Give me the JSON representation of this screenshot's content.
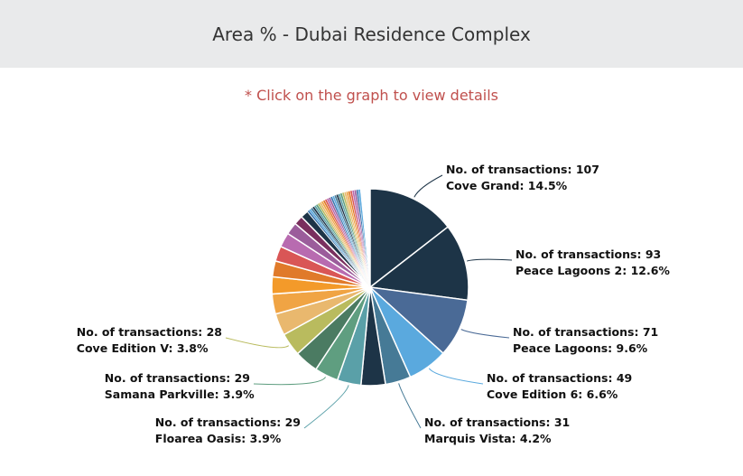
{
  "header": {
    "title": "Area % - Dubai Residence Complex"
  },
  "hint": "* Click on the graph to view details",
  "chart_data": {
    "type": "pie",
    "title": "Area % - Dubai Residence Complex",
    "slices": [
      {
        "name": "Cove Grand",
        "value": 14.5,
        "transactions": 107,
        "color": "#1d3447",
        "label": true
      },
      {
        "name": "Peace Lagoons 2",
        "value": 12.6,
        "transactions": 93,
        "color": "#1d3447",
        "label": true
      },
      {
        "name": "Peace Lagoons",
        "value": 9.6,
        "transactions": 71,
        "color": "#4a6a96",
        "label": true
      },
      {
        "name": "Cove Edition 6",
        "value": 6.6,
        "transactions": 49,
        "color": "#5aa9de",
        "label": true
      },
      {
        "name": "Marquis Vista",
        "value": 4.2,
        "transactions": 31,
        "color": "#467a96",
        "label": true
      },
      {
        "name": "",
        "value": 4.0,
        "color": "#1d3447"
      },
      {
        "name": "Floarea Oasis",
        "value": 3.9,
        "transactions": 29,
        "color": "#5aa0a8",
        "label": true
      },
      {
        "name": "Samana Parkville",
        "value": 3.9,
        "transactions": 29,
        "color": "#5f9e80",
        "label": true
      },
      {
        "name": "",
        "value": 3.9,
        "color": "#4b7b62"
      },
      {
        "name": "Cove Edition V",
        "value": 3.8,
        "transactions": 28,
        "color": "#b9bb5e",
        "label": true
      },
      {
        "name": "",
        "value": 3.6,
        "color": "#e9b86e"
      },
      {
        "name": "",
        "value": 3.3,
        "color": "#f0a444"
      },
      {
        "name": "",
        "value": 2.8,
        "color": "#f39a2a"
      },
      {
        "name": "",
        "value": 2.6,
        "color": "#e07a2a"
      },
      {
        "name": "",
        "value": 2.5,
        "color": "#d95656"
      },
      {
        "name": "",
        "value": 2.4,
        "color": "#b86bb0"
      },
      {
        "name": "",
        "value": 2.0,
        "color": "#9b5d9b"
      },
      {
        "name": "",
        "value": 1.5,
        "color": "#7a2f5e"
      },
      {
        "name": "",
        "value": 1.3,
        "color": "#1d3447"
      }
    ],
    "small_slice_colors": [
      "#3c78b0",
      "#5aa9de",
      "#467a96",
      "#1d3447",
      "#5aa0a8",
      "#5f9e80",
      "#b9bb5e",
      "#e9b86e",
      "#f0a444",
      "#e07a2a",
      "#d95656",
      "#b86bb0",
      "#9b5d9b"
    ],
    "label_prefix": "No. of transactions: "
  }
}
